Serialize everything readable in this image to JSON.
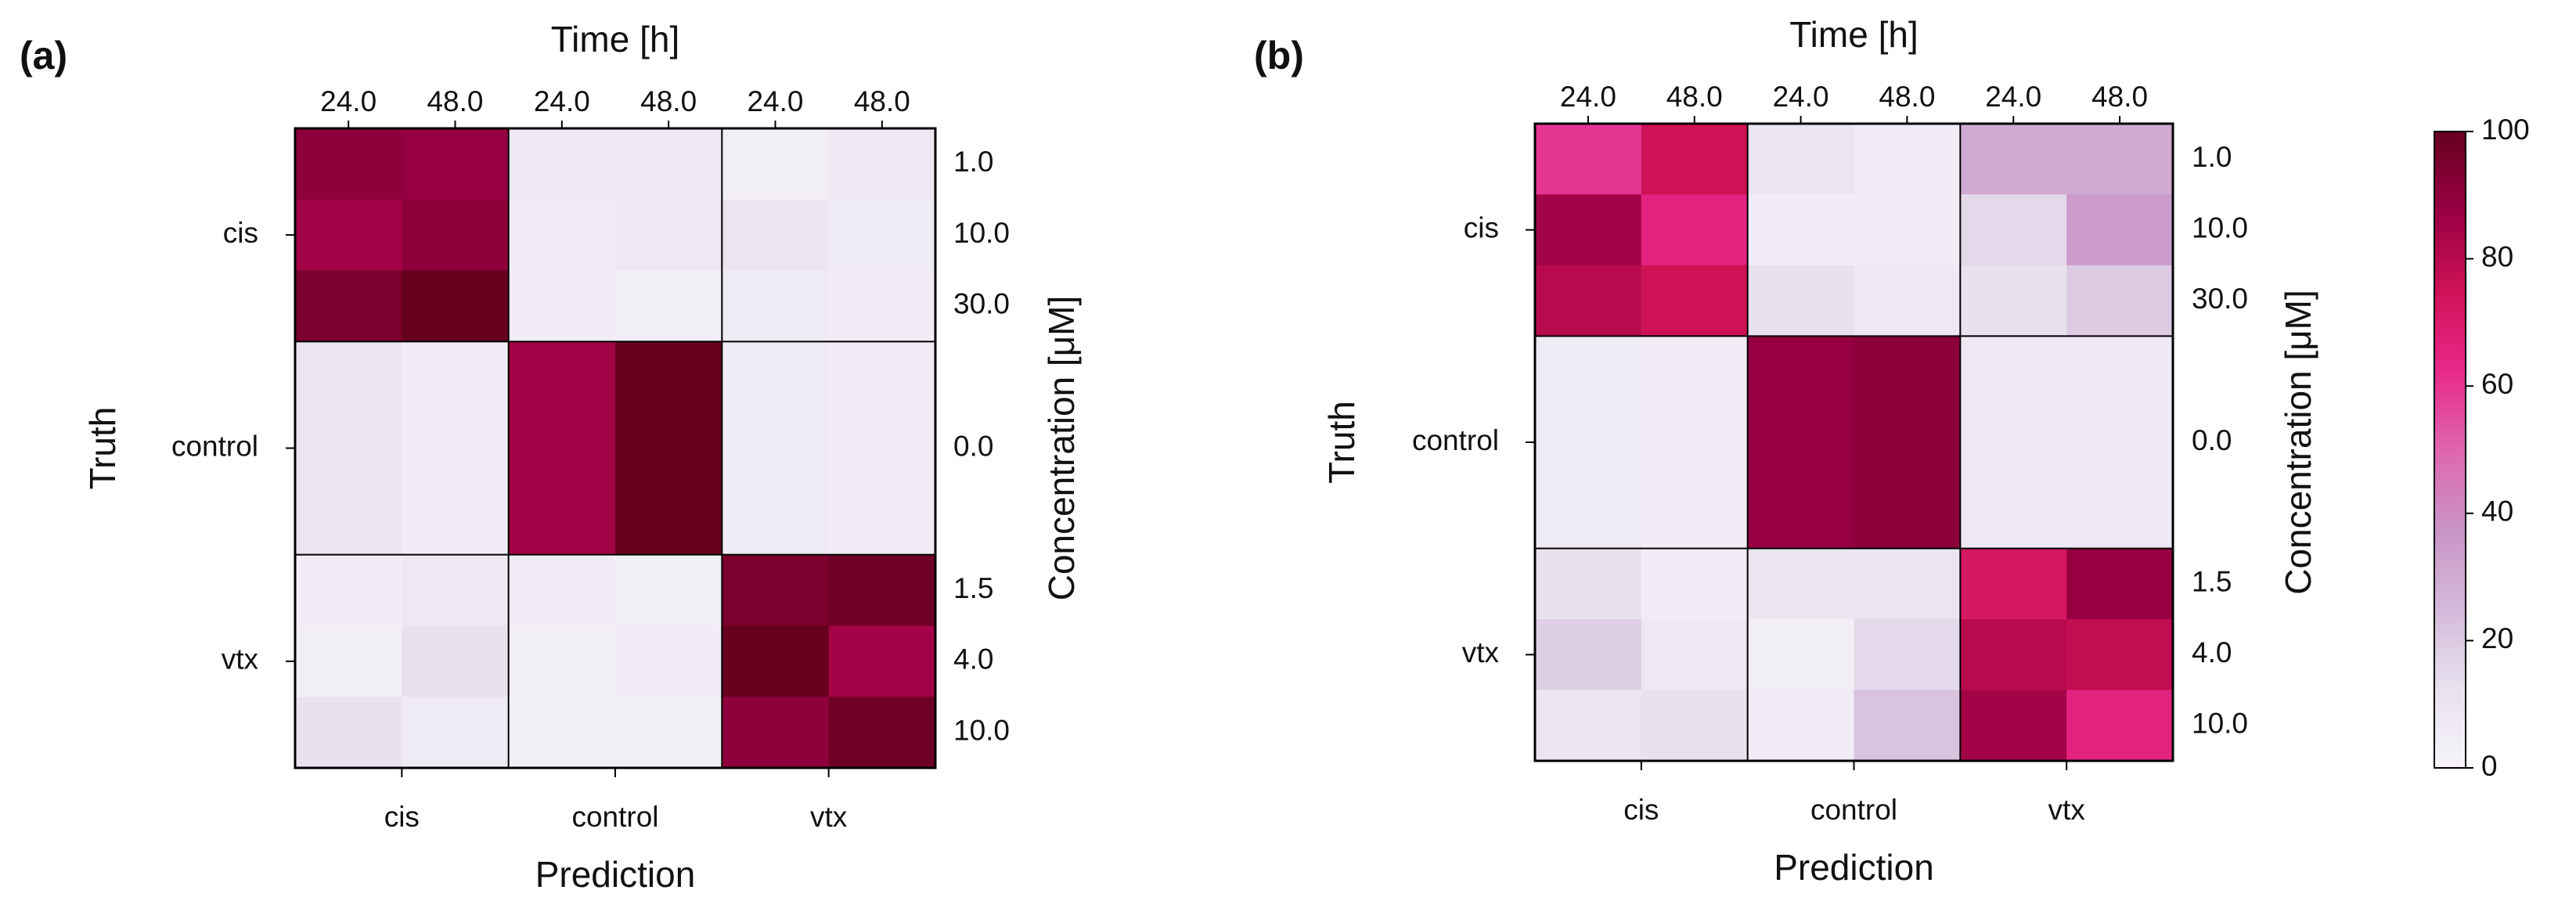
{
  "chart_data": [
    {
      "type": "heatmap",
      "panel_label": "(a)",
      "title": "Time [h]",
      "xlabel": "Prediction",
      "ylabel": "Truth",
      "y2label": "Concentration [μM]",
      "categories": [
        "cis",
        "control",
        "vtx"
      ],
      "x2_categories": [
        [
          "24.0",
          "48.0"
        ],
        [
          "24.0",
          "48.0"
        ],
        [
          "24.0",
          "48.0"
        ]
      ],
      "y_categories": [
        "cis",
        "control",
        "vtx"
      ],
      "y2_categories": [
        [
          "1.0",
          "10.0",
          "30.0"
        ],
        [
          "0.0"
        ],
        [
          "1.5",
          "4.0",
          "10.0"
        ]
      ],
      "values": [
        [
          90,
          88,
          8,
          8,
          4,
          8
        ],
        [
          85,
          90,
          5,
          8,
          10,
          6
        ],
        [
          95,
          100,
          5,
          4,
          6,
          5
        ],
        [
          10,
          5,
          85,
          100,
          6,
          5
        ],
        [
          5,
          8,
          5,
          4,
          95,
          98
        ],
        [
          4,
          12,
          3,
          5,
          100,
          85
        ],
        [
          12,
          6,
          3,
          3,
          90,
          98
        ]
      ]
    },
    {
      "type": "heatmap",
      "panel_label": "(b)",
      "title": "Time [h]",
      "xlabel": "Prediction",
      "ylabel": "Truth",
      "y2label": "Concentration [μM]",
      "categories": [
        "cis",
        "control",
        "vtx"
      ],
      "x2_categories": [
        [
          "24.0",
          "48.0"
        ],
        [
          "24.0",
          "48.0"
        ],
        [
          "24.0",
          "48.0"
        ]
      ],
      "y_categories": [
        "cis",
        "control",
        "vtx"
      ],
      "y2_categories": [
        [
          "1.0",
          "10.0",
          "30.0"
        ],
        [
          "0.0"
        ],
        [
          "1.5",
          "4.0",
          "10.0"
        ]
      ],
      "values": [
        [
          60,
          75,
          10,
          5,
          30,
          30
        ],
        [
          85,
          65,
          5,
          5,
          15,
          35
        ],
        [
          80,
          75,
          12,
          8,
          12,
          20
        ],
        [
          6,
          5,
          88,
          90,
          8,
          8
        ],
        [
          12,
          5,
          10,
          10,
          72,
          88
        ],
        [
          18,
          8,
          4,
          15,
          80,
          78
        ],
        [
          10,
          12,
          5,
          22,
          85,
          65
        ]
      ],
      "zlim": [
        0,
        100
      ],
      "zticks": [
        0,
        20,
        40,
        60,
        80,
        100
      ],
      "colormap": [
        "#f7f4f9",
        "#e7e1ef",
        "#d4b9da",
        "#c994c7",
        "#df65b0",
        "#e7298a",
        "#ce1256",
        "#980043",
        "#67001f"
      ]
    }
  ]
}
